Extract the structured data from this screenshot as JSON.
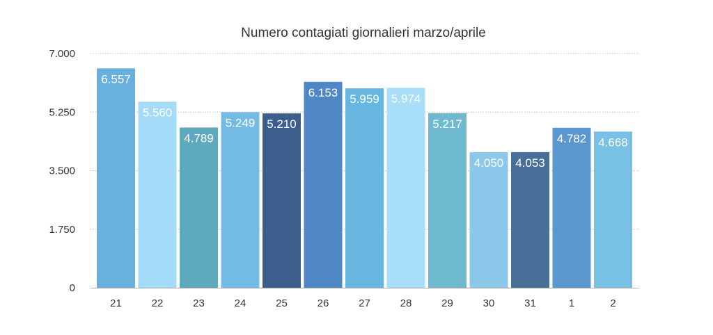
{
  "chart_data": {
    "type": "bar",
    "title": "Numero contagiati giornalieri marzo/aprile",
    "xlabel": "",
    "ylabel": "",
    "categories": [
      "21",
      "22",
      "23",
      "24",
      "25",
      "26",
      "27",
      "28",
      "29",
      "30",
      "31",
      "1",
      "2"
    ],
    "values": [
      6557,
      5560,
      4789,
      5249,
      5210,
      6153,
      5959,
      5974,
      5217,
      4050,
      4053,
      4782,
      4668
    ],
    "value_labels": [
      "6.557",
      "5.560",
      "4.789",
      "5.249",
      "5.210",
      "6.153",
      "5.959",
      "5.974",
      "5.217",
      "4.050",
      "4.053",
      "4.782",
      "4.668"
    ],
    "ylim": [
      0,
      7000
    ],
    "yticks": [
      0,
      1750,
      3500,
      5250,
      7000
    ],
    "ytick_labels": [
      "0",
      "1.750",
      "3.500",
      "5.250",
      "7.000"
    ],
    "grid": true,
    "legend": "none",
    "bar_colors": [
      "#68B0DE",
      "#A3DBF8",
      "#5FA9BD",
      "#74BCE6",
      "#3D5E8D",
      "#4F87C4",
      "#66B6E0",
      "#A8DEFA",
      "#6FB9CF",
      "#8CC8EA",
      "#476F98",
      "#5B97CF",
      "#78C1E5"
    ],
    "label_color": "#FFFFFF",
    "grid_color": "#BBBBBB",
    "axis_color": "#AAAAAA"
  }
}
